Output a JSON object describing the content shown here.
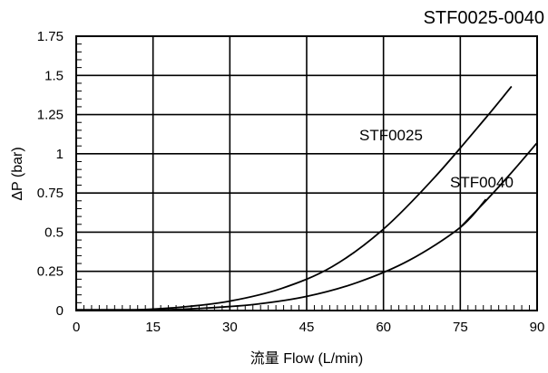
{
  "chart_data": {
    "type": "line",
    "title": "STF0025-0040",
    "xlabel": "流量 Flow (L/min)",
    "ylabel": "ΔP (bar)",
    "xlim": [
      0,
      90
    ],
    "ylim": [
      0,
      1.75
    ],
    "x_ticks": [
      0,
      15,
      30,
      45,
      60,
      75,
      90
    ],
    "y_ticks": [
      0,
      0.25,
      0.5,
      0.75,
      1,
      1.25,
      1.5,
      1.75
    ],
    "x_tick_labels": [
      "0",
      "15",
      "30",
      "45",
      "60",
      "75",
      "90"
    ],
    "y_tick_labels": [
      "0",
      "0.25",
      "0.5",
      "0.75",
      "1",
      "1.25",
      "1.5",
      "1.75"
    ],
    "grid": true,
    "series": [
      {
        "name": "STF0025",
        "color": "#000000",
        "x": [
          10,
          20,
          30,
          40,
          50,
          60,
          70,
          80,
          85
        ],
        "y": [
          0.001,
          0.02,
          0.06,
          0.14,
          0.28,
          0.52,
          0.85,
          1.23,
          1.43
        ]
      },
      {
        "name": "STF0040",
        "color": "#000000",
        "x": [
          15,
          25,
          35,
          45,
          55,
          65,
          75,
          80
        ],
        "y": [
          0.002,
          0.015,
          0.04,
          0.09,
          0.18,
          0.32,
          0.53,
          0.71
        ]
      },
      {
        "name": "",
        "color": "#000000",
        "x": [
          75,
          80,
          85,
          90
        ],
        "y": [
          0.53,
          0.7,
          0.88,
          1.07
        ]
      }
    ]
  }
}
